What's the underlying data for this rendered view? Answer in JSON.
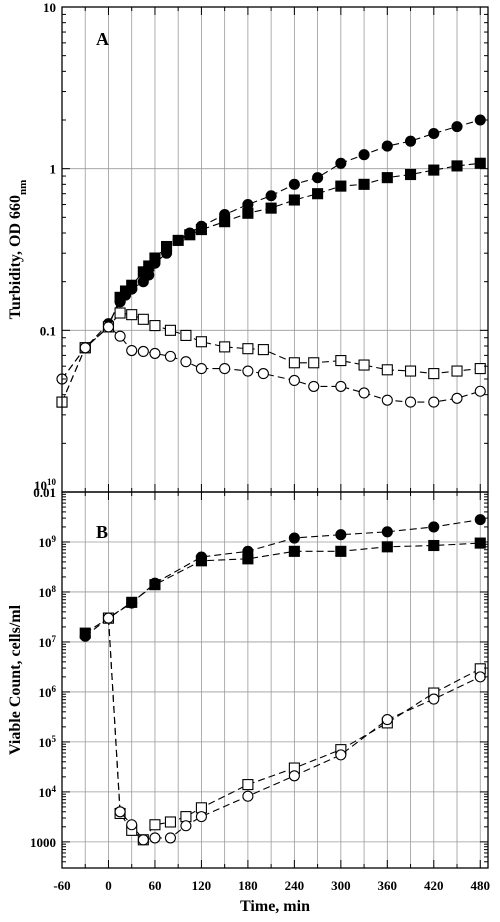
{
  "chart_data": [
    {
      "type": "line",
      "panel_label": "A",
      "ylabel": "Turbidity, OD 660",
      "ylabel_subscript": "nm",
      "xlabel": "",
      "y_scale": "log",
      "xlim": [
        -60,
        490
      ],
      "ylim": [
        0.01,
        10
      ],
      "x_ticks": [
        -60,
        0,
        60,
        120,
        180,
        240,
        300,
        360,
        420,
        480
      ],
      "y_ticks": [
        {
          "value": 0.01,
          "label": "0.01"
        },
        {
          "value": 0.1,
          "label": "0.1"
        },
        {
          "value": 1,
          "label": "1"
        },
        {
          "value": 10,
          "label": "10"
        }
      ],
      "grid": true,
      "series": [
        {
          "marker": "filled-circle",
          "x": [
            -60,
            -30,
            0,
            15,
            22,
            30,
            45,
            52,
            60,
            75,
            90,
            105,
            120,
            150,
            180,
            210,
            240,
            270,
            300,
            330,
            360,
            390,
            420,
            450,
            480
          ],
          "y": [
            0.05,
            0.078,
            0.11,
            0.15,
            0.165,
            0.18,
            0.2,
            0.22,
            0.26,
            0.3,
            0.36,
            0.4,
            0.44,
            0.52,
            0.6,
            0.68,
            0.8,
            0.88,
            1.08,
            1.22,
            1.38,
            1.48,
            1.65,
            1.82,
            2.0
          ]
        },
        {
          "marker": "filled-square",
          "x": [
            -60,
            -30,
            0,
            15,
            22,
            30,
            45,
            52,
            60,
            75,
            90,
            105,
            120,
            150,
            180,
            210,
            240,
            270,
            300,
            330,
            360,
            390,
            420,
            450,
            480
          ],
          "y": [
            0.036,
            0.078,
            0.105,
            0.16,
            0.175,
            0.19,
            0.23,
            0.25,
            0.28,
            0.33,
            0.36,
            0.39,
            0.42,
            0.47,
            0.53,
            0.57,
            0.64,
            0.7,
            0.78,
            0.8,
            0.88,
            0.92,
            0.98,
            1.04,
            1.08
          ]
        },
        {
          "marker": "open-square",
          "x": [
            -60,
            -30,
            0,
            15,
            30,
            45,
            60,
            80,
            100,
            120,
            150,
            180,
            200,
            240,
            265,
            300,
            330,
            360,
            390,
            420,
            450,
            480
          ],
          "y": [
            0.036,
            0.078,
            0.105,
            0.128,
            0.125,
            0.117,
            0.107,
            0.1,
            0.093,
            0.085,
            0.079,
            0.077,
            0.076,
            0.063,
            0.063,
            0.065,
            0.061,
            0.057,
            0.056,
            0.054,
            0.056,
            0.058
          ]
        },
        {
          "marker": "open-circle",
          "x": [
            -60,
            -30,
            0,
            15,
            30,
            45,
            60,
            80,
            100,
            120,
            150,
            180,
            200,
            240,
            265,
            300,
            330,
            360,
            390,
            420,
            450,
            480
          ],
          "y": [
            0.05,
            0.078,
            0.105,
            0.092,
            0.075,
            0.074,
            0.072,
            0.069,
            0.064,
            0.058,
            0.058,
            0.056,
            0.054,
            0.049,
            0.045,
            0.045,
            0.041,
            0.037,
            0.036,
            0.036,
            0.038,
            0.042
          ]
        }
      ]
    },
    {
      "type": "line",
      "panel_label": "B",
      "ylabel": "Viable Count, cells/ml",
      "xlabel": "Time, min",
      "y_scale": "log",
      "xlim": [
        -60,
        490
      ],
      "ylim": [
        300,
        10000000000
      ],
      "x_ticks": [
        -60,
        0,
        60,
        120,
        180,
        240,
        300,
        360,
        420,
        480
      ],
      "y_ticks": [
        {
          "value": 1000,
          "label": "1000",
          "mantissa": "1000",
          "exp": ""
        },
        {
          "value": 10000,
          "label": "10^4",
          "mantissa": "10",
          "exp": "4"
        },
        {
          "value": 100000,
          "label": "10^5",
          "mantissa": "10",
          "exp": "5"
        },
        {
          "value": 1000000,
          "label": "10^6",
          "mantissa": "10",
          "exp": "6"
        },
        {
          "value": 10000000,
          "label": "10^7",
          "mantissa": "10",
          "exp": "7"
        },
        {
          "value": 100000000,
          "label": "10^8",
          "mantissa": "10",
          "exp": "8"
        },
        {
          "value": 1000000000,
          "label": "10^9",
          "mantissa": "10",
          "exp": "9"
        },
        {
          "value": 10000000000,
          "label": "10^10",
          "mantissa": "10",
          "exp": "10"
        }
      ],
      "grid": true,
      "series": [
        {
          "marker": "filled-circle",
          "x": [
            -30,
            0,
            30,
            60,
            120,
            180,
            240,
            300,
            360,
            420,
            480
          ],
          "y": [
            13000000,
            30000000,
            60000000,
            150000000,
            500000000,
            650000000,
            1200000000,
            1400000000,
            1600000000,
            2000000000,
            2800000000
          ]
        },
        {
          "marker": "filled-square",
          "x": [
            -30,
            0,
            30,
            60,
            120,
            180,
            240,
            300,
            360,
            420,
            480
          ],
          "y": [
            15000000,
            30000000,
            62000000,
            140000000,
            420000000,
            460000000,
            650000000,
            650000000,
            800000000,
            850000000,
            950000000
          ]
        },
        {
          "marker": "open-square",
          "x": [
            0,
            15,
            30,
            45,
            60,
            80,
            100,
            120,
            180,
            240,
            300,
            360,
            420,
            480
          ],
          "y": [
            30000000,
            3700,
            1700,
            1100,
            2200,
            2500,
            3200,
            4800,
            14000,
            30000,
            70000,
            240000,
            950000,
            2900000
          ]
        },
        {
          "marker": "open-circle",
          "x": [
            0,
            15,
            30,
            45,
            60,
            80,
            100,
            120,
            180,
            240,
            300,
            360,
            420,
            480
          ],
          "y": [
            30000000,
            4000,
            2200,
            1100,
            1200,
            1200,
            2100,
            3200,
            8200,
            21000,
            55000,
            280000,
            720000,
            2000000
          ]
        }
      ]
    }
  ]
}
